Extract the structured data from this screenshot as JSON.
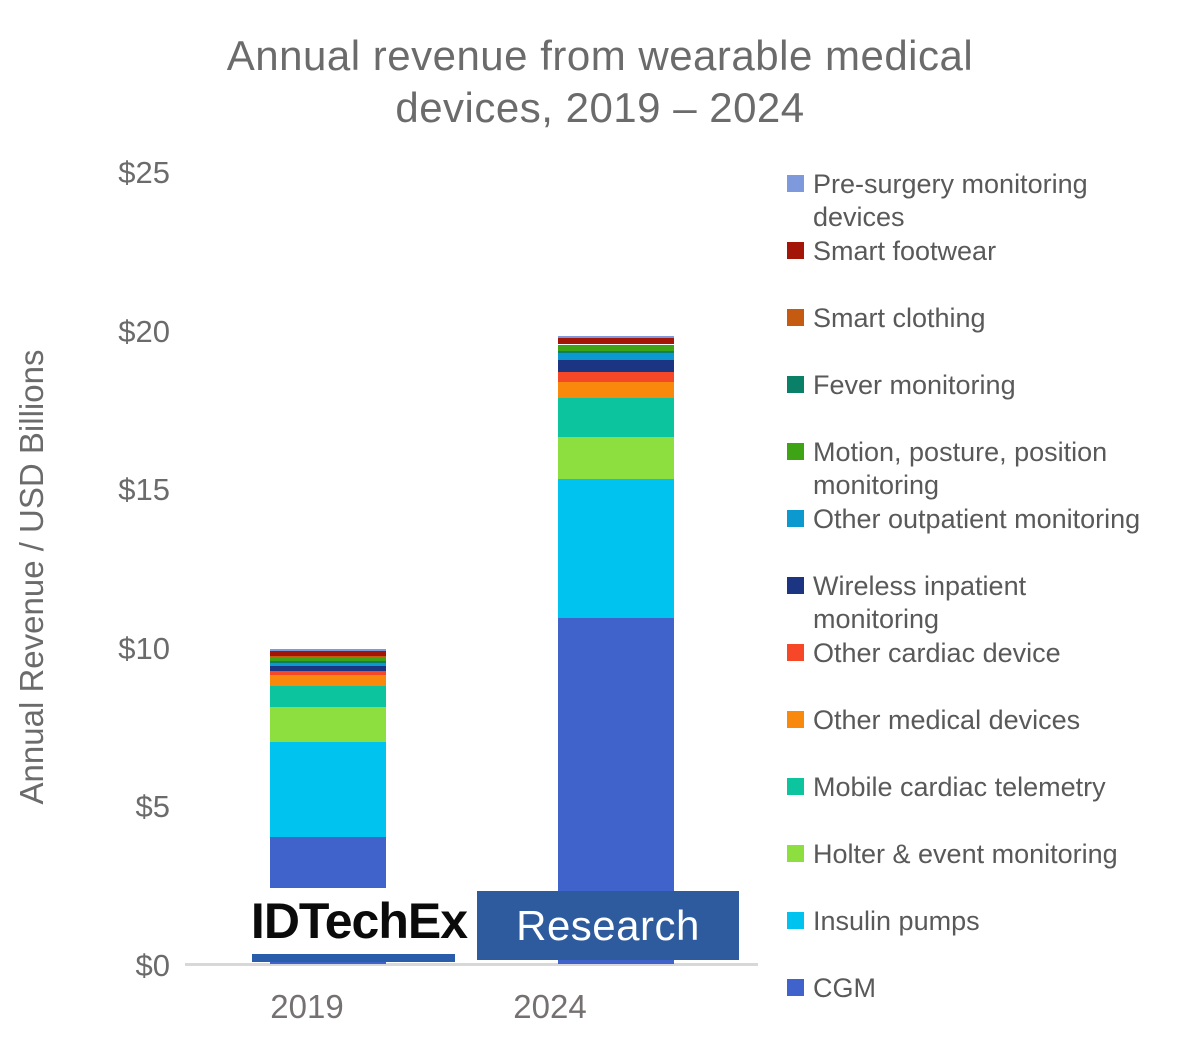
{
  "title": "Annual revenue from wearable medical\ndevices,  2019 – 2024",
  "y_axis_title": "Annual Revenue / USD Billions",
  "logo": {
    "brand": "IDTechEx",
    "sub": "Research"
  },
  "colors": {
    "baseline": "#d8d8d8",
    "title_text": "#6b6b6b",
    "legend_text": "#595959",
    "research_box": "#2d5b9e",
    "logo_underline": "#2a5cac"
  },
  "chart_data": {
    "type": "bar",
    "subtype": "stacked-column",
    "title": "Annual revenue from wearable medical devices, 2019 – 2024",
    "xlabel": "",
    "ylabel": "Annual Revenue / USD Billions",
    "ylim": [
      0,
      25
    ],
    "grid": false,
    "legend_position": "right",
    "categories": [
      "2019",
      "2024"
    ],
    "y_ticks": [
      {
        "label": "$0",
        "value": 0
      },
      {
        "label": "$5",
        "value": 5
      },
      {
        "label": "$10",
        "value": 10
      },
      {
        "label": "$15",
        "value": 15
      },
      {
        "label": "$20",
        "value": 20
      },
      {
        "label": "$25",
        "value": 25
      }
    ],
    "totals": [
      9.9,
      19.8
    ],
    "series": [
      {
        "name": "CGM",
        "color": "#3f63cb",
        "values": [
          4.0,
          10.9
        ]
      },
      {
        "name": "Insulin pumps",
        "color": "#00c3ef",
        "values": [
          3.0,
          4.4
        ]
      },
      {
        "name": "Holter & event monitoring",
        "color": "#8cdf3e",
        "values": [
          1.1,
          1.3
        ]
      },
      {
        "name": "Mobile cardiac telemetry",
        "color": "#0cc49e",
        "values": [
          0.65,
          1.25
        ]
      },
      {
        "name": "Other medical devices",
        "color": "#f8890d",
        "values": [
          0.35,
          0.5
        ]
      },
      {
        "name": "Other cardiac device",
        "color": "#f64729",
        "values": [
          0.13,
          0.3
        ]
      },
      {
        "name": "Wireless inpatient monitoring",
        "color": "#1c3582",
        "values": [
          0.16,
          0.4
        ]
      },
      {
        "name": "Other outpatient monitoring",
        "color": "#0c99d0",
        "values": [
          0.09,
          0.2
        ]
      },
      {
        "name": "Fever monitoring",
        "color": "#0a8069",
        "values": [
          0.06,
          0.09
        ]
      },
      {
        "name": "Motion, posture, position monitoring",
        "color": "#3ea315",
        "values": [
          0.13,
          0.13
        ]
      },
      {
        "name": "Smart clothing",
        "color": "#c55a11",
        "values": [
          0.03,
          0.06
        ]
      },
      {
        "name": "Smart footwear",
        "color": "#a21507",
        "values": [
          0.16,
          0.19
        ]
      },
      {
        "name": "Pre-surgery monitoring devices",
        "color": "#7e99dc",
        "values": [
          0.06,
          0.09
        ]
      }
    ],
    "legend": [
      {
        "label": "Pre-surgery monitoring\ndevices",
        "color": "#7e99dc"
      },
      {
        "label": "Smart footwear",
        "color": "#a21507"
      },
      {
        "label": "Smart clothing",
        "color": "#c55a11"
      },
      {
        "label": "Fever monitoring",
        "color": "#0a8069"
      },
      {
        "label": "Motion, posture, position\nmonitoring",
        "color": "#3ea315"
      },
      {
        "label": "Other outpatient monitoring",
        "color": "#0c99d0"
      },
      {
        "label": "Wireless inpatient\nmonitoring",
        "color": "#1c3582"
      },
      {
        "label": "Other cardiac device",
        "color": "#f64729"
      },
      {
        "label": "Other medical devices",
        "color": "#f8890d"
      },
      {
        "label": "Mobile cardiac telemetry",
        "color": "#0cc49e"
      },
      {
        "label": "Holter & event monitoring",
        "color": "#8cdf3e"
      },
      {
        "label": "Insulin pumps",
        "color": "#00c3ef"
      },
      {
        "label": "CGM",
        "color": "#3f63cb"
      }
    ]
  }
}
